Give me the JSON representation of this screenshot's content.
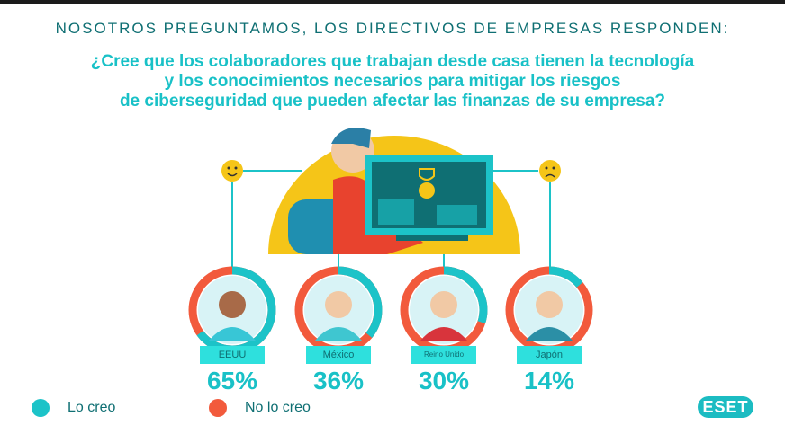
{
  "heading": "NOSOTROS PREGUNTAMOS, LOS DIRECTIVOS DE EMPRESAS RESPONDEN:",
  "question": [
    "¿Cree que los colaboradores que trabajan desde casa tienen la tecnología",
    "y los conocimientos necesarios para mitigar los riesgos",
    "de ciberseguridad que pueden afectar las finanzas de su empresa?"
  ],
  "colors": {
    "yes": "#1cc3c8",
    "no": "#f25a3c",
    "accent": "#f5c518"
  },
  "chart_data": {
    "type": "pie",
    "variant": "donut",
    "title": "¿Cree que los colaboradores que trabajan desde casa tienen la tecnología y los conocimientos necesarios?",
    "categories": [
      "EEUU",
      "México",
      "Reino Unido",
      "Japón"
    ],
    "series": [
      {
        "name": "Lo creo",
        "values": [
          65,
          36,
          30,
          14
        ]
      },
      {
        "name": "No lo creo",
        "values": [
          35,
          64,
          70,
          86
        ]
      }
    ],
    "data_labels": [
      "65%",
      "36%",
      "30%",
      "14%"
    ]
  },
  "legend": {
    "yes": "Lo creo",
    "no": "No lo creo"
  },
  "icons": {
    "happy": "happy-face-icon",
    "sad": "sad-face-icon"
  },
  "logo": "ESET"
}
